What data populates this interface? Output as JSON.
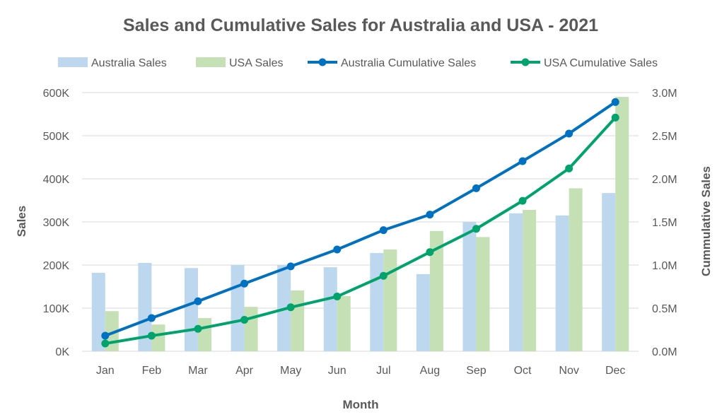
{
  "chart_data": {
    "type": "bar",
    "title": "Sales and Cumulative Sales for Australia and USA - 2021",
    "xlabel": "Month",
    "ylabel": "Sales",
    "y2label": "Cummulative Sales",
    "categories": [
      "Jan",
      "Feb",
      "Mar",
      "Apr",
      "May",
      "Jun",
      "Jul",
      "Aug",
      "Sep",
      "Oct",
      "Nov",
      "Dec"
    ],
    "ylim": [
      0,
      600000
    ],
    "y_ticks": [
      0,
      100000,
      200000,
      300000,
      400000,
      500000,
      600000
    ],
    "y_tick_labels": [
      "0K",
      "100K",
      "200K",
      "300K",
      "400K",
      "500K",
      "600K"
    ],
    "y2lim": [
      0,
      3000000
    ],
    "y2_ticks": [
      0,
      500000,
      1000000,
      1500000,
      2000000,
      2500000,
      3000000
    ],
    "y2_tick_labels": [
      "0.0M",
      "0.5M",
      "1.0M",
      "1.5M",
      "2.0M",
      "2.5M",
      "3.0M"
    ],
    "grid": true,
    "legend_position": "top",
    "series": [
      {
        "name": "Australia Sales",
        "kind": "bar",
        "axis": "left",
        "color": "#bdd7ee",
        "values": [
          182000,
          205000,
          193000,
          200000,
          200000,
          195000,
          228000,
          179000,
          300000,
          320000,
          315000,
          367000
        ]
      },
      {
        "name": "USA Sales",
        "kind": "bar",
        "axis": "left",
        "color": "#c5e0b4",
        "values": [
          93000,
          62000,
          77000,
          103000,
          141000,
          128000,
          236000,
          279000,
          265000,
          328000,
          378000,
          590000
        ]
      },
      {
        "name": "Australia Cumulative Sales",
        "kind": "line",
        "axis": "right",
        "color": "#0070c0",
        "values": [
          180000,
          385000,
          580000,
          785000,
          985000,
          1180000,
          1405000,
          1585000,
          1890000,
          2205000,
          2525000,
          2890000
        ]
      },
      {
        "name": "USA Cumulative Sales",
        "kind": "line",
        "axis": "right",
        "color": "#00a36c",
        "values": [
          90000,
          180000,
          260000,
          365000,
          510000,
          635000,
          875000,
          1150000,
          1420000,
          1745000,
          2120000,
          2710000
        ]
      }
    ]
  }
}
